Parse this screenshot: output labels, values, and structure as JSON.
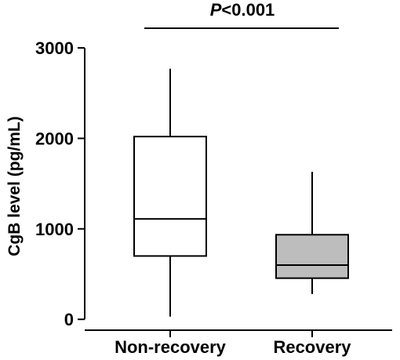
{
  "chart_data": {
    "type": "box",
    "ylabel": "CgB level (pg/mL)",
    "ylim": [
      -120,
      3200
    ],
    "yticks": [
      0,
      1000,
      2000,
      3000
    ],
    "ytick_labels": [
      "0",
      "1000",
      "2000",
      "3000"
    ],
    "categories": [
      "Non-recovery",
      "Recovery"
    ],
    "boxes": [
      {
        "category": "Non-recovery",
        "whisker_low": 30,
        "q1": 700,
        "median": 1110,
        "q3": 2020,
        "whisker_high": 2770,
        "fill": "#ffffff"
      },
      {
        "category": "Recovery",
        "whisker_low": 280,
        "q1": 455,
        "median": 600,
        "q3": 935,
        "whisker_high": 1630,
        "fill": "#bdbdbd"
      }
    ],
    "annotation": {
      "p_symbol": "P",
      "p_rest": "<0.001",
      "between": [
        "Non-recovery",
        "Recovery"
      ]
    }
  }
}
